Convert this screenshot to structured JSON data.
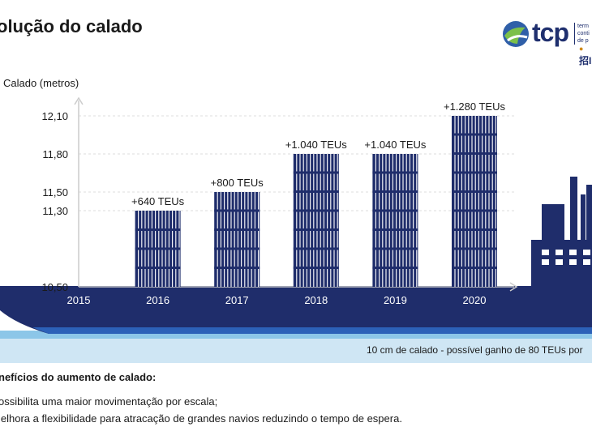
{
  "title": "olução do calado",
  "logo": {
    "brand": "tcp",
    "sub_lines": [
      "term",
      "conti",
      "de p"
    ],
    "chinese": "招I"
  },
  "chart_data": {
    "type": "bar",
    "ylabel": "Calado (metros)",
    "y_ticks": [
      "12,10",
      "11,80",
      "11,50",
      "11,30",
      "10,50"
    ],
    "y_tick_values": [
      12.1,
      11.8,
      11.5,
      11.3,
      10.5
    ],
    "categories": [
      "2015",
      "2016",
      "2017",
      "2018",
      "2019",
      "2020"
    ],
    "values": [
      10.5,
      11.3,
      11.5,
      11.8,
      11.8,
      12.1
    ],
    "data_labels": [
      "",
      "+640 TEUs",
      "+800 TEUs",
      "+1.040 TEUs",
      "+1.040 TEUs",
      "+1.280 TEUs"
    ],
    "ylim": [
      10.5,
      12.1
    ],
    "grid": true,
    "colors": {
      "bars": "#1f2d6b",
      "hull": "#1f2d6b",
      "water": "#6fb6e0",
      "grid": "#dddddd"
    }
  },
  "footnote": "10 cm de calado - possível ganho de 80 TEUs por",
  "benefits": {
    "title": "nefícios do aumento de calado:",
    "items": [
      "ossibilita uma maior movimentação por escala;",
      "lelhora a flexibilidade para atracação de grandes navios reduzindo o tempo de espera."
    ]
  }
}
